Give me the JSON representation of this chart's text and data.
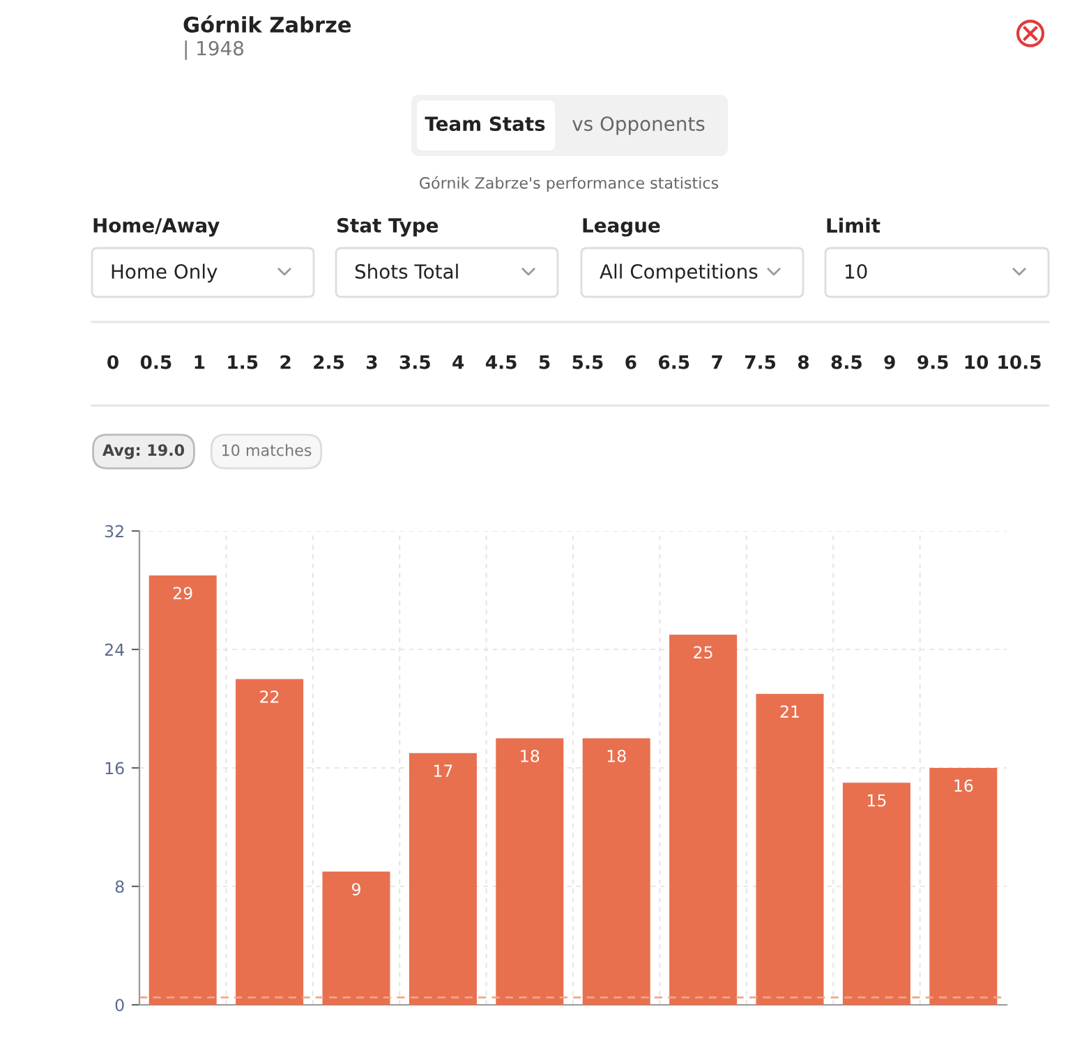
{
  "chart_data": {
    "type": "bar",
    "title": "Górnik Zabrze",
    "subtitle": "| 1948",
    "annotations": [
      "Team Stats",
      "vs Opponents",
      "Górnik Zabrze's performance statistics",
      "Home/Away",
      "Home Only",
      "Stat Type",
      "Shots Total",
      "League",
      "All Competitions",
      "Limit",
      "10",
      "0",
      "0.5",
      "1",
      "1.5",
      "2",
      "2.5",
      "3",
      "3.5",
      "4",
      "4.5",
      "5",
      "5.5",
      "6",
      "6.5",
      "7",
      "7.5",
      "8",
      "8.5",
      "9",
      "9.5",
      "10",
      "10.5",
      "Avg: 19.0",
      "10 matches"
    ],
    "categories": [
      null,
      null,
      null,
      null,
      null,
      null,
      null,
      null,
      null,
      null
    ],
    "values": [
      29,
      22,
      9,
      17,
      18,
      18,
      25,
      21,
      15,
      16
    ],
    "color": "#e8704f",
    "ylim": [
      0,
      32
    ],
    "yticks": [
      0,
      8,
      16,
      24,
      32
    ],
    "grid": true,
    "data_labels": true,
    "ref_lines": [
      {
        "axis": "y",
        "value": 0.5,
        "color": "#f4a582",
        "line_style": "dashed"
      }
    ]
  }
}
